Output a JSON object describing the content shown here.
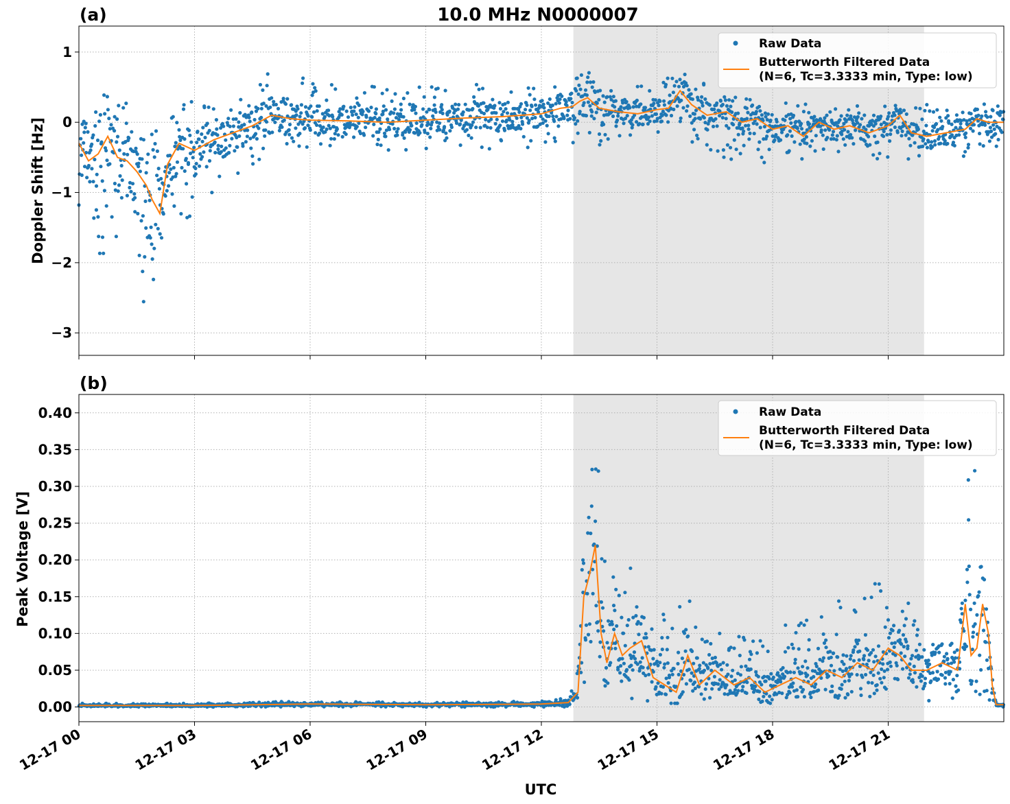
{
  "figure_title": "10.0 MHz N0000007",
  "xlabel": "UTC",
  "colors": {
    "raw": "#1f77b4",
    "filtered": "#ff7f0e",
    "shade": "#e6e6e6",
    "grid": "#b0b0b0"
  },
  "chart_data": [
    {
      "type": "scatter",
      "panel_label": "(a)",
      "title": "10.0 MHz N0000007",
      "xlabel": "",
      "ylabel": "Doppler Shift [Hz]",
      "x_type": "datetime",
      "x_tick_labels": [
        "12-17 00",
        "12-17 03",
        "12-17 06",
        "12-17 09",
        "12-17 12",
        "12-17 15",
        "12-17 18",
        "12-17 21"
      ],
      "xlim_hours": [
        0,
        24
      ],
      "ylim": [
        -3.32,
        1.37
      ],
      "y_ticks": [
        1,
        0,
        -1,
        -2,
        -3
      ],
      "y_tick_labels": [
        "1",
        "0",
        "−1",
        "−2",
        "−3"
      ],
      "shaded_span_hours": [
        12.83,
        21.93
      ],
      "grid": true,
      "legend_position": "top-right",
      "legend": [
        "Raw Data",
        "Butterworth Filtered Data",
        "(N=6, Tc=3.3333 min, Type: low)"
      ],
      "series": [
        {
          "name": "Raw Data",
          "kind": "scatter",
          "envelope_x": [
            0,
            0.5,
            1,
            1.5,
            1.9,
            2.3,
            3,
            4,
            5,
            6,
            8,
            10,
            12,
            12.8,
            13.2,
            14,
            15,
            15.5,
            16.5,
            18,
            20,
            21,
            22,
            23,
            24
          ],
          "envelope_low": [
            -1.7,
            -1.9,
            -2.1,
            -2.5,
            -3.0,
            -1.6,
            -1.3,
            -0.8,
            -0.4,
            -0.35,
            -0.4,
            -0.4,
            -0.35,
            -0.3,
            -0.6,
            -0.2,
            -0.25,
            -0.2,
            -0.5,
            -0.6,
            -0.5,
            -0.55,
            -0.6,
            -0.5,
            -0.55
          ],
          "envelope_high": [
            0.1,
            0.45,
            0.3,
            0.3,
            0.25,
            0.25,
            0.3,
            0.4,
            0.75,
            0.6,
            0.5,
            0.55,
            0.5,
            0.6,
            0.85,
            0.5,
            0.55,
            0.75,
            0.5,
            0.3,
            0.25,
            0.3,
            0.3,
            0.2,
            0.35
          ]
        },
        {
          "name": "Butterworth Filtered Data",
          "kind": "line",
          "x": [
            0,
            0.25,
            0.5,
            0.75,
            1,
            1.25,
            1.5,
            1.75,
            1.9,
            2.1,
            2.3,
            2.6,
            3,
            3.5,
            4,
            4.5,
            5,
            5.5,
            6,
            7,
            8,
            9,
            10,
            11,
            12,
            12.5,
            12.8,
            13,
            13.2,
            13.5,
            14,
            14.5,
            15,
            15.3,
            15.6,
            15.9,
            16.3,
            16.8,
            17.2,
            17.6,
            18,
            18.4,
            18.8,
            19.2,
            19.6,
            20,
            20.5,
            21,
            21.3,
            21.6,
            22,
            22.5,
            23,
            23.3,
            23.6,
            24
          ],
          "y": [
            -0.3,
            -0.55,
            -0.45,
            -0.2,
            -0.5,
            -0.55,
            -0.7,
            -0.9,
            -1.1,
            -1.3,
            -0.6,
            -0.3,
            -0.4,
            -0.25,
            -0.15,
            -0.05,
            0.1,
            0.05,
            0.03,
            0.02,
            0.0,
            0.03,
            0.06,
            0.08,
            0.12,
            0.2,
            0.22,
            0.3,
            0.35,
            0.2,
            0.15,
            0.12,
            0.18,
            0.2,
            0.45,
            0.25,
            0.1,
            0.15,
            0.0,
            0.05,
            -0.1,
            -0.05,
            -0.2,
            0.0,
            -0.1,
            -0.05,
            -0.15,
            -0.05,
            0.1,
            -0.15,
            -0.2,
            -0.15,
            -0.1,
            0.05,
            0.0,
            0.0
          ]
        }
      ]
    },
    {
      "type": "scatter",
      "panel_label": "(b)",
      "title": "",
      "xlabel": "UTC",
      "ylabel": "Peak Voltage [V]",
      "x_type": "datetime",
      "x_tick_labels": [
        "12-17 00",
        "12-17 03",
        "12-17 06",
        "12-17 09",
        "12-17 12",
        "12-17 15",
        "12-17 18",
        "12-17 21"
      ],
      "xlim_hours": [
        0,
        24
      ],
      "ylim": [
        -0.02,
        0.425
      ],
      "y_ticks": [
        0.0,
        0.05,
        0.1,
        0.15,
        0.2,
        0.25,
        0.3,
        0.35,
        0.4
      ],
      "y_tick_labels": [
        "0.00",
        "0.05",
        "0.10",
        "0.15",
        "0.20",
        "0.25",
        "0.30",
        "0.35",
        "0.40"
      ],
      "shaded_span_hours": [
        12.83,
        21.93
      ],
      "grid": true,
      "legend_position": "top-right",
      "legend": [
        "Raw Data",
        "Butterworth Filtered Data",
        "(N=6, Tc=3.3333 min, Type: low)"
      ],
      "series": [
        {
          "name": "Raw Data",
          "kind": "scatter",
          "envelope_x": [
            0,
            3,
            5.5,
            6,
            9,
            12,
            12.6,
            12.9,
            13.1,
            13.3,
            13.5,
            13.8,
            14.3,
            15,
            15.7,
            16.5,
            17.5,
            18.5,
            19.5,
            20.5,
            21,
            21.5,
            22,
            22.8,
            23.1,
            23.3,
            23.5,
            23.65,
            23.8,
            24
          ],
          "envelope_low": [
            0.0,
            0.0,
            0.0,
            0.0,
            0.0,
            0.0,
            0.0,
            0.0,
            0.005,
            0.01,
            0.01,
            0.005,
            0.005,
            0.005,
            0.005,
            0.005,
            0.005,
            0.005,
            0.005,
            0.005,
            0.005,
            0.005,
            0.005,
            0.005,
            0.005,
            0.005,
            0.005,
            0.0,
            0.0,
            0.0
          ],
          "envelope_high": [
            0.005,
            0.005,
            0.008,
            0.008,
            0.006,
            0.008,
            0.015,
            0.03,
            0.35,
            0.4,
            0.34,
            0.2,
            0.2,
            0.12,
            0.16,
            0.11,
            0.09,
            0.12,
            0.14,
            0.17,
            0.18,
            0.15,
            0.12,
            0.15,
            0.35,
            0.33,
            0.2,
            0.06,
            0.005,
            0.005
          ]
        },
        {
          "name": "Butterworth Filtered Data",
          "kind": "line",
          "x": [
            0,
            3,
            6,
            9,
            12,
            12.7,
            12.95,
            13.1,
            13.25,
            13.4,
            13.55,
            13.7,
            13.9,
            14.1,
            14.3,
            14.6,
            14.9,
            15.2,
            15.5,
            15.8,
            16.1,
            16.5,
            17,
            17.4,
            17.8,
            18.2,
            18.6,
            19,
            19.4,
            19.8,
            20.2,
            20.6,
            21,
            21.3,
            21.6,
            22,
            22.4,
            22.8,
            23.0,
            23.15,
            23.3,
            23.45,
            23.6,
            23.7,
            23.8,
            24
          ],
          "y": [
            0.002,
            0.002,
            0.004,
            0.003,
            0.004,
            0.006,
            0.02,
            0.15,
            0.18,
            0.22,
            0.1,
            0.06,
            0.1,
            0.07,
            0.08,
            0.09,
            0.04,
            0.03,
            0.02,
            0.07,
            0.03,
            0.05,
            0.03,
            0.04,
            0.02,
            0.03,
            0.04,
            0.03,
            0.05,
            0.04,
            0.06,
            0.05,
            0.08,
            0.07,
            0.05,
            0.05,
            0.06,
            0.05,
            0.14,
            0.07,
            0.08,
            0.14,
            0.1,
            0.03,
            0.003,
            0.003
          ]
        }
      ]
    }
  ]
}
